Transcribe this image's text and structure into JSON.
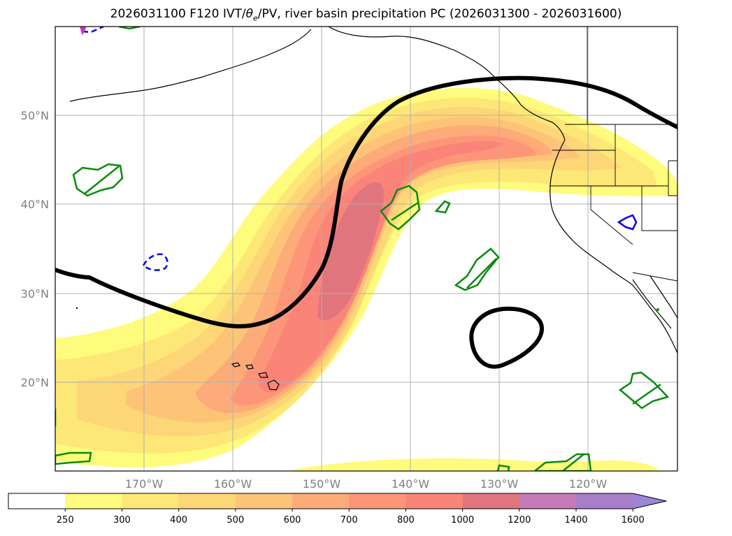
{
  "title": {
    "run": "2026031100",
    "forecast_hour": "F120",
    "ivt_label": "IVT/",
    "theta_e_symbol": "θ",
    "theta_e_subscript": "e",
    "pv_label": "/PV, river basin precipitation PC",
    "period": "(2026031300 - 2026031600)"
  },
  "map": {
    "lat_labels": [
      "50°N",
      "40°N",
      "30°N",
      "20°N"
    ],
    "lat_values": [
      50,
      40,
      30,
      20
    ],
    "lon_labels": [
      "170°W",
      "160°W",
      "150°W",
      "140°W",
      "130°W",
      "120°W"
    ],
    "lon_values": [
      -170,
      -160,
      -150,
      -140,
      -130,
      -120
    ],
    "features": {
      "ivt_plume": "Atmospheric river IVT plume from Hawaii toward the US Pacific Northwest",
      "pv_contour": "Thick black PV contour",
      "precip_basins": "Green river basin precipitation outlines",
      "blue_contours": "Blue dashed theta-e contours"
    }
  },
  "colorbar": {
    "levels": [
      "250",
      "300",
      "400",
      "500",
      "600",
      "700",
      "800",
      "1000",
      "1200",
      "1400",
      "1600"
    ],
    "colors": [
      "#ffffff",
      "#fffb7c",
      "#fde877",
      "#fdd677",
      "#fdc478",
      "#fdab78",
      "#fd9678",
      "#fb8478",
      "#e0757e",
      "#c47bb8",
      "#a97ec9",
      "#9d85d6"
    ],
    "extend": "max"
  }
}
